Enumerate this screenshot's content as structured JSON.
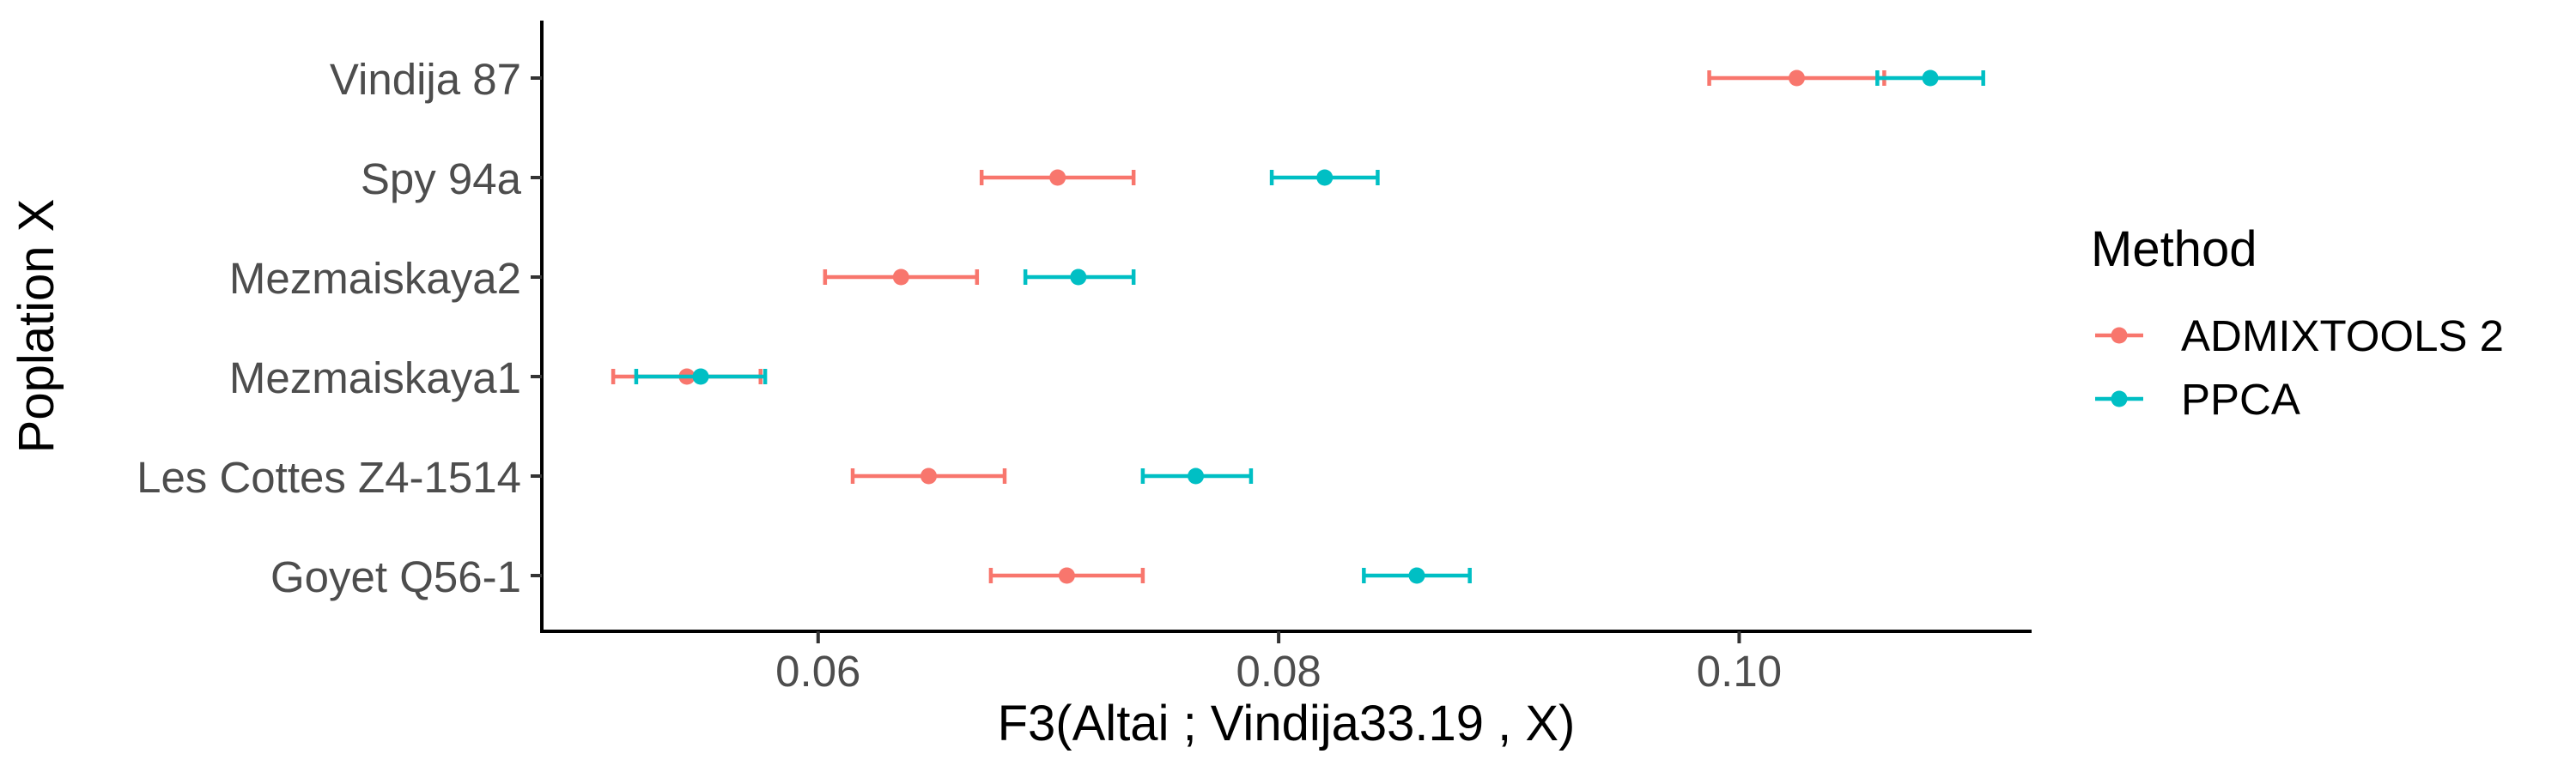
{
  "chart_data": {
    "type": "scatter",
    "subtype": "dot-with-errorbars",
    "orientation": "horizontal",
    "xlabel": "F3(Altai ; Vindija33.19 , X)",
    "ylabel": "Poplation X",
    "xlim": [
      0.048,
      0.1127
    ],
    "xticks": [
      0.06,
      0.08,
      0.1
    ],
    "xtick_labels": [
      "0.06",
      "0.08",
      "0.10"
    ],
    "categories": [
      "Vindija 87",
      "Spy 94a",
      "Mezmaiskaya2",
      "Mezmaiskaya1",
      "Les Cottes Z4-1514",
      "Goyet Q56-1"
    ],
    "grid": false,
    "legend": {
      "title": "Method",
      "position": "right"
    },
    "series": [
      {
        "name": "ADMIXTOOLS 2",
        "color": "#F8766D",
        "values": [
          0.1025,
          0.0704,
          0.0636,
          0.0543,
          0.0648,
          0.0708
        ],
        "lower": [
          0.0987,
          0.0671,
          0.0603,
          0.0511,
          0.0615,
          0.0675
        ],
        "upper": [
          0.1063,
          0.0737,
          0.0669,
          0.0575,
          0.0681,
          0.0741
        ]
      },
      {
        "name": "PPCA",
        "color": "#00BFC4",
        "values": [
          0.1083,
          0.082,
          0.0713,
          0.0549,
          0.0764,
          0.086
        ],
        "lower": [
          0.106,
          0.0797,
          0.069,
          0.0521,
          0.0741,
          0.0837
        ],
        "upper": [
          0.1106,
          0.0843,
          0.0737,
          0.0577,
          0.0788,
          0.0883
        ]
      }
    ]
  }
}
